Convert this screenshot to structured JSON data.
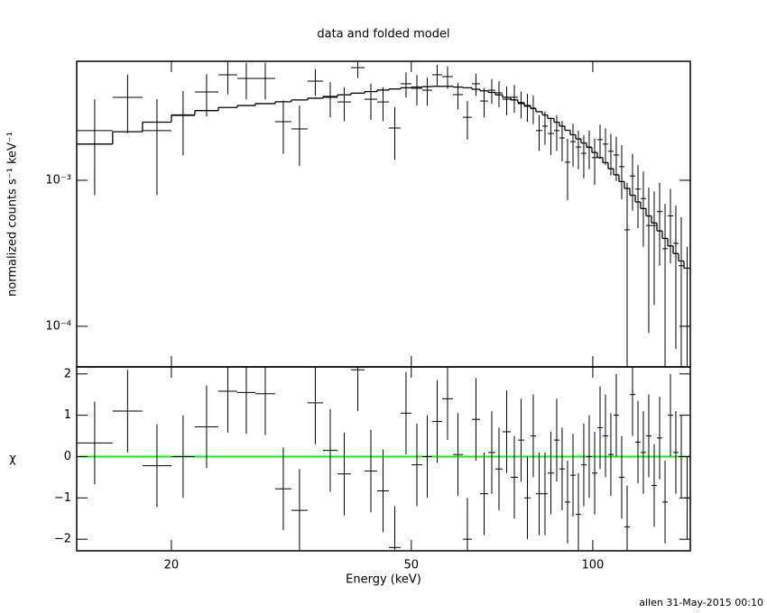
{
  "chart_data": {
    "type": "spectrum",
    "title": "data and folded model",
    "x_label": "Energy (keV)",
    "footer": "allen 31-May-2015 00:10",
    "log_x": true,
    "xlim": [
      13.93,
      145.14
    ],
    "xticks": [
      20,
      50,
      100
    ],
    "bins": [
      13.93,
      15.98,
      17.91,
      20.0,
      21.87,
      23.93,
      25.72,
      27.56,
      29.73,
      31.63,
      33.65,
      35.69,
      37.71,
      39.72,
      41.83,
      43.89,
      45.9,
      48.0,
      50.03,
      52.15,
      54.16,
      56.25,
      58.63,
      60.89,
      63.03,
      65.02,
      67.06,
      68.94,
      70.86,
      73.1,
      75.13,
      76.97,
      78.85,
      80.5,
      82.47,
      84.18,
      86.24,
      88.04,
      89.88,
      91.77,
      93.69,
      95.63,
      97.63,
      99.68,
      101.77,
      103.9,
      106.05,
      108.27,
      110.53,
      112.85,
      115.21,
      117.63,
      120.06,
      122.57,
      125.14,
      127.76,
      130.44,
      133.17,
      135.93,
      138.77,
      141.68,
      145.14
    ],
    "panels": [
      {
        "y_label": "normalized counts s⁻¹ keV⁻¹",
        "log_y": true,
        "ylim": [
          5.27e-05,
          0.00653
        ],
        "yticks": [
          {
            "value": 0.0001,
            "label": "10⁻⁴"
          },
          {
            "value": 0.001,
            "label": "10⁻³"
          }
        ],
        "data": {
          "color": "#000000",
          "values": [
            0.00219,
            0.0037,
            0.00219,
            0.00278,
            0.00403,
            0.00528,
            0.00498,
            0.00498,
            0.00252,
            0.00225,
            0.00478,
            0.0037,
            0.00344,
            0.00591,
            0.00359,
            0.00344,
            0.00228,
            0.00458,
            0.00426,
            0.00414,
            0.00528,
            0.00513,
            0.00386,
            0.0027,
            0.00458,
            0.00349,
            0.00414,
            0.00397,
            0.00359,
            0.0037,
            0.00335,
            0.00321,
            0.00312,
            0.00219,
            0.00235,
            0.00209,
            0.00219,
            0.00195,
            0.00133,
            0.00184,
            0.00169,
            0.00153,
            0.00169,
            0.00143,
            0.0019,
            0.00177,
            0.00158,
            0.00149,
            0.00124,
            0.000458,
            0.00107,
            0.00087,
            0.00075,
            0.00049,
            0.00049,
            0.00061,
            0.00034,
            0.00057,
            0.00037,
            0.00026,
            0.0001
          ],
          "errors": [
            0.0014,
            0.0016,
            0.0014,
            0.0013,
            0.0013,
            0.0014,
            0.0014,
            0.0014,
            0.001,
            0.001,
            0.001,
            0.001,
            0.0009,
            0.0009,
            0.001,
            0.0009,
            0.0009,
            0.0009,
            0.001,
            0.0009,
            0.0009,
            0.0009,
            0.0008,
            0.0008,
            0.0008,
            0.0008,
            0.0008,
            0.0008,
            0.0008,
            0.0008,
            0.0007,
            0.0007,
            0.0007,
            0.0006,
            0.0006,
            0.0006,
            0.0006,
            0.0006,
            0.0006,
            0.0006,
            0.0005,
            0.0005,
            0.0005,
            0.0005,
            0.0005,
            0.0005,
            0.0005,
            0.0005,
            0.0005,
            0.0005,
            0.00045,
            0.0004,
            0.0004,
            0.0004,
            0.00035,
            0.00035,
            0.00035,
            0.0003,
            0.0003,
            0.0003,
            0.00025
          ]
        },
        "model": {
          "color": "#000000",
          "values": [
            0.00177,
            0.00215,
            0.0025,
            0.0028,
            0.003,
            0.00315,
            0.00325,
            0.00335,
            0.00345,
            0.00355,
            0.00365,
            0.00375,
            0.00385,
            0.00395,
            0.00405,
            0.00415,
            0.00422,
            0.0043,
            0.00435,
            0.00438,
            0.0044,
            0.0044,
            0.00435,
            0.0043,
            0.0042,
            0.0041,
            0.004,
            0.00385,
            0.0037,
            0.00355,
            0.0034,
            0.00325,
            0.0031,
            0.00295,
            0.0028,
            0.00265,
            0.0025,
            0.00235,
            0.0022,
            0.00205,
            0.00192,
            0.0018,
            0.00168,
            0.00155,
            0.00143,
            0.00132,
            0.0012,
            0.00109,
            0.00098,
            0.00088,
            0.00079,
            0.00071,
            0.00064,
            0.00057,
            0.00051,
            0.00045,
            0.0004,
            0.000355,
            0.000315,
            0.00028,
            0.00025
          ]
        }
      },
      {
        "y_label": "χ",
        "log_y": false,
        "ylim": [
          -2.28,
          2.17
        ],
        "yticks": [
          {
            "value": -2,
            "label": "−2"
          },
          {
            "value": -1,
            "label": "−1"
          },
          0,
          1,
          2
        ],
        "reference_line": {
          "value": 0,
          "color": "#00ff00"
        },
        "residual_error": 1,
        "residuals": {
          "color": "#000000",
          "values": [
            0.33,
            1.1,
            -0.22,
            0.0,
            0.72,
            1.58,
            1.55,
            1.52,
            -0.78,
            -1.3,
            1.3,
            0.15,
            -0.42,
            2.1,
            -0.35,
            -0.83,
            -2.2,
            1.05,
            -0.2,
            0.0,
            0.85,
            1.4,
            0.05,
            -2.0,
            0.9,
            -0.9,
            0.1,
            -0.3,
            0.6,
            -0.5,
            0.4,
            -1.0,
            0.5,
            -0.9,
            -0.9,
            -0.4,
            0.4,
            -0.3,
            -1.1,
            -0.45,
            -1.4,
            -0.2,
            0.0,
            -0.4,
            0.7,
            0.5,
            0.05,
            1.0,
            -0.5,
            -1.7,
            1.5,
            0.35,
            0.1,
            0.5,
            -0.7,
            0.45,
            -1.1,
            1.0,
            0.1,
            0.0,
            -1.0
          ]
        }
      }
    ]
  }
}
